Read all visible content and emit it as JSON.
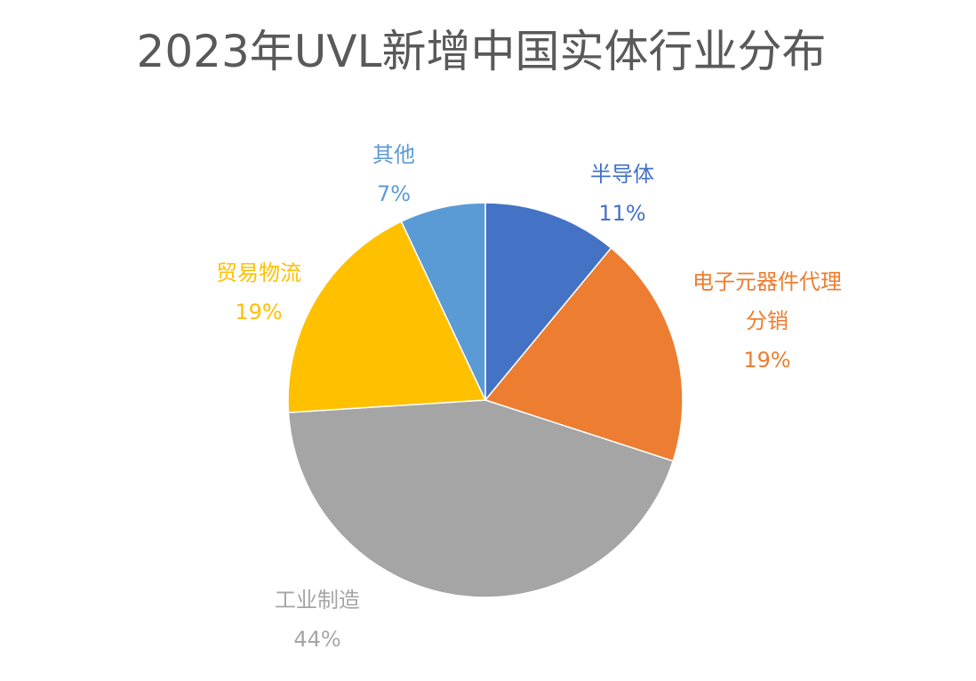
{
  "chart_data": {
    "type": "pie",
    "title": "2023年UVL新增中国实体行业分布",
    "slices": [
      {
        "name": "半导体",
        "value": 11,
        "label": "11%",
        "color": "#4472C4"
      },
      {
        "name": "电子元器件代理分销",
        "name_lines": [
          "电子元器件代理",
          "分销"
        ],
        "value": 19,
        "label": "19%",
        "color": "#ED7D31"
      },
      {
        "name": "工业制造",
        "value": 44,
        "label": "44%",
        "color": "#A5A5A5"
      },
      {
        "name": "贸易物流",
        "value": 19,
        "label": "19%",
        "color": "#FFC000"
      },
      {
        "name": "其他",
        "value": 7,
        "label": "7%",
        "color": "#5B9BD5"
      }
    ],
    "start": "12 o'clock",
    "direction": "clockwise",
    "legend": "none"
  }
}
